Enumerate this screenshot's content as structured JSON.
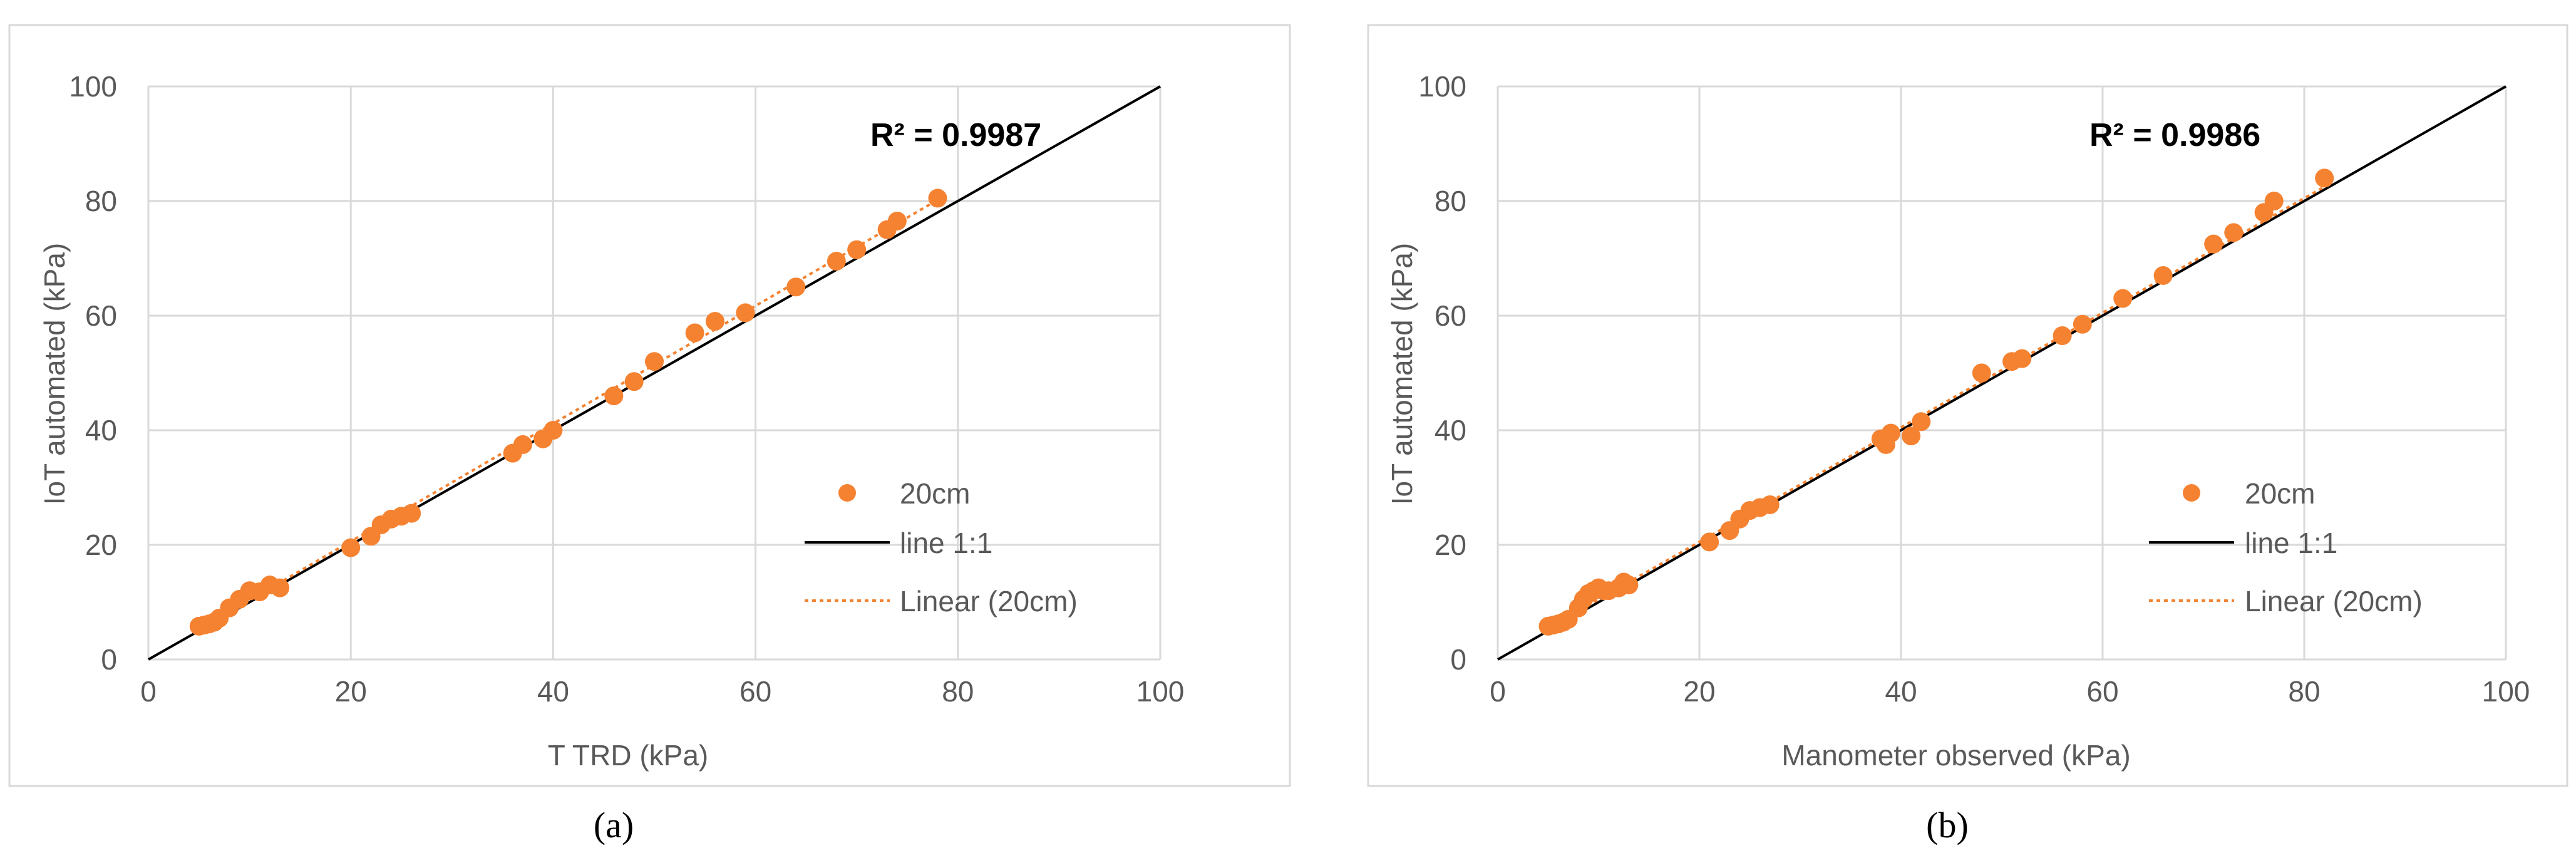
{
  "figure": {
    "captions": [
      "(a)",
      "(b)"
    ]
  },
  "colors": {
    "points": "#F58231",
    "trend": "#F58231",
    "line11": "#000000",
    "grid": "#D9D9D9",
    "axis_text": "#595959",
    "frame": "#D9D9D9"
  },
  "chart_data": [
    {
      "type": "scatter",
      "title": "",
      "xlabel": "T TRD (kPa)",
      "ylabel": "IoT automated (kPa)",
      "xlim": [
        0,
        100
      ],
      "ylim": [
        0,
        100
      ],
      "xticks": [
        0,
        20,
        40,
        60,
        80,
        100
      ],
      "yticks": [
        0,
        20,
        40,
        60,
        80,
        100
      ],
      "grid": true,
      "annotation": "R² = 0.9987",
      "legend_position": "right-bottom",
      "series": [
        {
          "name": "20cm",
          "kind": "points",
          "x": [
            5,
            5.5,
            6,
            6.5,
            7,
            8,
            9,
            10,
            11,
            12,
            13,
            20,
            22,
            23,
            24,
            25,
            26,
            36,
            37,
            39,
            40,
            46,
            48,
            50,
            54,
            56,
            59,
            64,
            68,
            70,
            73,
            74,
            78
          ],
          "y": [
            5.8,
            6,
            6.2,
            6.5,
            7.2,
            9,
            10.5,
            12,
            11.8,
            13,
            12.5,
            19.5,
            21.5,
            23.5,
            24.5,
            25,
            25.5,
            36,
            37.5,
            38.5,
            40,
            46,
            48.5,
            52,
            57,
            59,
            60.5,
            65,
            69.5,
            71.5,
            75,
            76.5,
            80.5
          ]
        },
        {
          "name": "line 1:1",
          "kind": "line",
          "x": [
            0,
            100
          ],
          "y": [
            0,
            100
          ]
        },
        {
          "name": "Linear (20cm)",
          "kind": "trend",
          "x": [
            5,
            78
          ],
          "y": [
            5.2,
            80.2
          ]
        }
      ]
    },
    {
      "type": "scatter",
      "title": "",
      "xlabel": "Manometer observed (kPa)",
      "ylabel": "IoT automated (kPa)",
      "xlim": [
        0,
        100
      ],
      "ylim": [
        0,
        100
      ],
      "xticks": [
        0,
        20,
        40,
        60,
        80,
        100
      ],
      "yticks": [
        0,
        20,
        40,
        60,
        80,
        100
      ],
      "grid": true,
      "annotation": "R² = 0.9986",
      "legend_position": "right-bottom",
      "series": [
        {
          "name": "20cm",
          "kind": "points",
          "x": [
            5,
            5.5,
            6,
            6.5,
            7,
            8,
            8.5,
            9,
            9.5,
            10,
            10.5,
            11,
            12,
            12.5,
            13,
            21,
            23,
            24,
            25,
            26,
            27,
            38,
            38.5,
            39,
            41,
            42,
            48,
            51,
            52,
            56,
            58,
            62,
            66,
            71,
            73,
            76,
            77,
            82
          ],
          "y": [
            5.8,
            6,
            6.2,
            6.5,
            7,
            9,
            10.5,
            11.5,
            12,
            12.5,
            12,
            12,
            12.5,
            13.5,
            13,
            20.5,
            22.5,
            24.5,
            26,
            26.5,
            27,
            38.5,
            37.5,
            39.5,
            39,
            41.5,
            50,
            52,
            52.5,
            56.5,
            58.5,
            63,
            67,
            72.5,
            74.5,
            78,
            80,
            84
          ]
        },
        {
          "name": "line 1:1",
          "kind": "line",
          "x": [
            0,
            100
          ],
          "y": [
            0,
            100
          ]
        },
        {
          "name": "Linear (20cm)",
          "kind": "trend",
          "x": [
            5,
            82
          ],
          "y": [
            5.5,
            82.5
          ]
        }
      ]
    }
  ]
}
